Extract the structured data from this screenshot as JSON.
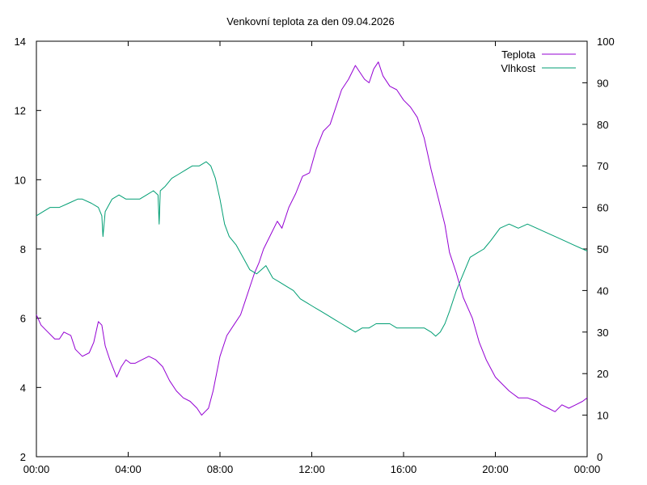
{
  "chart_data": {
    "type": "line",
    "title": "Venkovní teplota za den 09.04.2026",
    "x_ticks": [
      "00:00",
      "04:00",
      "08:00",
      "12:00",
      "16:00",
      "20:00",
      "00:00"
    ],
    "x_range_hours": [
      0,
      24
    ],
    "y_left": {
      "ticks": [
        "2",
        "4",
        "6",
        "8",
        "10",
        "12",
        "14"
      ],
      "range": [
        2,
        14
      ]
    },
    "y_right": {
      "ticks": [
        "0",
        "10",
        "20",
        "30",
        "40",
        "50",
        "60",
        "70",
        "80",
        "90",
        "100"
      ],
      "range": [
        0,
        100
      ]
    },
    "legend_position": "top-right",
    "grid": false,
    "series": [
      {
        "name": "Teplota",
        "axis": "left",
        "color": "#9400d3",
        "x": [
          0,
          0.2,
          0.5,
          0.8,
          1.0,
          1.2,
          1.5,
          1.7,
          2.0,
          2.3,
          2.5,
          2.7,
          2.85,
          3.0,
          3.2,
          3.5,
          3.7,
          3.9,
          4.1,
          4.3,
          4.6,
          4.9,
          5.2,
          5.5,
          5.8,
          6.1,
          6.4,
          6.7,
          7.0,
          7.2,
          7.5,
          7.7,
          8.0,
          8.3,
          8.6,
          8.9,
          9.1,
          9.3,
          9.5,
          9.7,
          9.9,
          10.2,
          10.5,
          10.7,
          11.0,
          11.3,
          11.6,
          11.9,
          12.2,
          12.5,
          12.8,
          13.0,
          13.3,
          13.6,
          13.9,
          14.1,
          14.3,
          14.5,
          14.7,
          14.9,
          15.1,
          15.4,
          15.7,
          16.0,
          16.3,
          16.6,
          16.9,
          17.2,
          17.5,
          17.8,
          18.0,
          18.3,
          18.6,
          19.0,
          19.3,
          19.6,
          20.0,
          20.3,
          20.6,
          21.0,
          21.4,
          21.8,
          22.0,
          22.3,
          22.6,
          22.9,
          23.2,
          23.5,
          23.8,
          24.0
        ],
        "values": [
          6.1,
          5.8,
          5.6,
          5.4,
          5.4,
          5.6,
          5.5,
          5.1,
          4.9,
          5.0,
          5.3,
          5.9,
          5.8,
          5.2,
          4.8,
          4.3,
          4.6,
          4.8,
          4.7,
          4.7,
          4.8,
          4.9,
          4.8,
          4.6,
          4.2,
          3.9,
          3.7,
          3.6,
          3.4,
          3.2,
          3.4,
          3.9,
          4.9,
          5.5,
          5.8,
          6.1,
          6.5,
          6.9,
          7.3,
          7.6,
          8.0,
          8.4,
          8.8,
          8.6,
          9.2,
          9.6,
          10.1,
          10.2,
          10.9,
          11.4,
          11.6,
          12.0,
          12.6,
          12.9,
          13.3,
          13.1,
          12.9,
          12.8,
          13.2,
          13.4,
          13.0,
          12.7,
          12.6,
          12.3,
          12.1,
          11.8,
          11.2,
          10.3,
          9.5,
          8.7,
          7.9,
          7.3,
          6.6,
          6.0,
          5.3,
          4.8,
          4.3,
          4.1,
          3.9,
          3.7,
          3.7,
          3.6,
          3.5,
          3.4,
          3.3,
          3.5,
          3.4,
          3.5,
          3.6,
          3.7
        ]
      },
      {
        "name": "Vlhkost",
        "axis": "right",
        "color": "#009e73",
        "x": [
          0,
          0.3,
          0.6,
          1.0,
          1.4,
          1.8,
          2.0,
          2.4,
          2.7,
          2.85,
          2.9,
          3.0,
          3.3,
          3.6,
          3.9,
          4.2,
          4.5,
          4.8,
          5.1,
          5.3,
          5.35,
          5.4,
          5.6,
          5.9,
          6.2,
          6.5,
          6.8,
          7.1,
          7.4,
          7.6,
          7.8,
          8.0,
          8.2,
          8.4,
          8.7,
          9.0,
          9.3,
          9.6,
          9.8,
          10.0,
          10.3,
          10.6,
          10.9,
          11.2,
          11.5,
          11.8,
          12.1,
          12.4,
          12.7,
          13.0,
          13.3,
          13.6,
          13.9,
          14.2,
          14.5,
          14.8,
          15.1,
          15.4,
          15.7,
          16.0,
          16.3,
          16.6,
          16.9,
          17.2,
          17.4,
          17.6,
          17.8,
          18.0,
          18.3,
          18.6,
          18.9,
          19.2,
          19.5,
          19.8,
          20.2,
          20.6,
          21.0,
          21.4,
          21.8,
          22.2,
          22.6,
          23.0,
          23.4,
          23.8,
          24.0
        ],
        "values": [
          58,
          59,
          60,
          60,
          61,
          62,
          62,
          61,
          60,
          58,
          53,
          59,
          62,
          63,
          62,
          62,
          62,
          63,
          64,
          63,
          56,
          64,
          65,
          67,
          68,
          69,
          70,
          70,
          71,
          70,
          67,
          62,
          56,
          53,
          51,
          48,
          45,
          44,
          45,
          46,
          43,
          42,
          41,
          40,
          38,
          37,
          36,
          35,
          34,
          33,
          32,
          31,
          30,
          31,
          31,
          32,
          32,
          32,
          31,
          31,
          31,
          31,
          31,
          30,
          29,
          30,
          32,
          35,
          40,
          44,
          48,
          49,
          50,
          52,
          55,
          56,
          55,
          56,
          55,
          54,
          53,
          52,
          51,
          50,
          49.5
        ]
      }
    ]
  }
}
